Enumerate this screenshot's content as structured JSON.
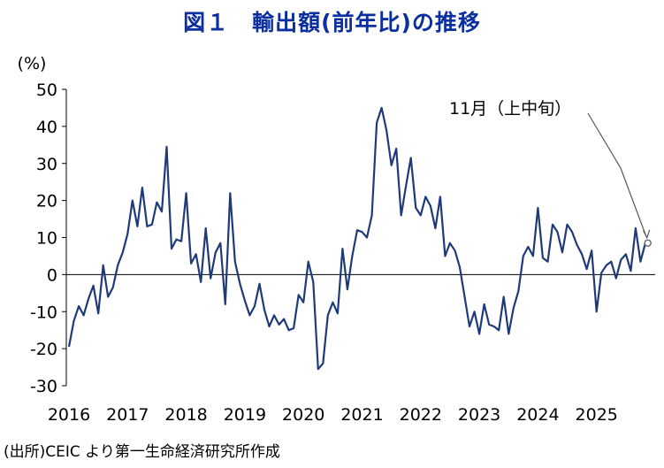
{
  "chart_data": {
    "type": "line",
    "title": "図１　輸出額(前年比)の推移",
    "ylabel": "(%)",
    "xlabel": "",
    "ylim": [
      -30,
      50
    ],
    "yticks": [
      -30,
      -20,
      -10,
      0,
      10,
      20,
      30,
      40,
      50
    ],
    "negative_tick_color": "#e8141c",
    "xlim": [
      2016,
      2026
    ],
    "year_labels": [
      "2016",
      "2017",
      "2018",
      "2019",
      "2020",
      "2021",
      "2022",
      "2023",
      "2024",
      "2025"
    ],
    "grid": false,
    "series": [
      {
        "name": "輸出額(前年比)",
        "color": "#1f3a7a",
        "values": [
          -19.5,
          -12.5,
          -8.5,
          -11,
          -6.5,
          -3,
          -10.5,
          2.5,
          -6,
          -3.5,
          2.5,
          6,
          11,
          20,
          13,
          23.5,
          13,
          13.5,
          19.5,
          17,
          34.5,
          7,
          9.5,
          9,
          22,
          3,
          5.5,
          -2,
          12.5,
          -1,
          6,
          8.5,
          -8,
          22,
          3.5,
          -2.5,
          -7,
          -11,
          -8.5,
          -2.5,
          -9.5,
          -14,
          -11,
          -13.5,
          -12,
          -15,
          -14.5,
          -5.5,
          -7.5,
          3.5,
          -2,
          -25.5,
          -24,
          -11,
          -7.5,
          -10.5,
          7,
          -4,
          5,
          12,
          11.5,
          10,
          16,
          41,
          45,
          39,
          29.5,
          34,
          16,
          24,
          31.5,
          18,
          16,
          21,
          18.5,
          12.5,
          21,
          5,
          8.5,
          6.5,
          2,
          -6,
          -14,
          -10,
          -16,
          -8,
          -13.5,
          -14,
          -15,
          -6,
          -16,
          -9,
          -4.5,
          5,
          7.5,
          5,
          18,
          4.5,
          3.5,
          13.5,
          11.5,
          6,
          13.5,
          11.5,
          8,
          5.5,
          1.5,
          6.5,
          -10,
          0.5,
          2.5,
          3.5,
          -1,
          4,
          5.5,
          1,
          12.5,
          3.5,
          8.5
        ]
      }
    ],
    "highlight_point": {
      "label": "11月（上中旬）",
      "value": 8.5,
      "year": 2025.875,
      "marker": "open-circle"
    }
  },
  "source": "(出所)CEIC より第一生命経済研究所作成"
}
